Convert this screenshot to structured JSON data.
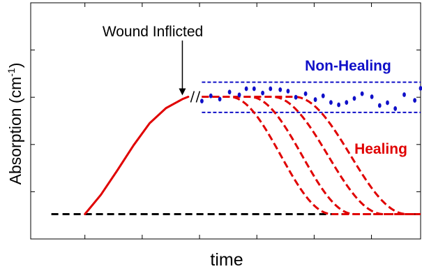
{
  "chart_data": {
    "type": "line",
    "title": "",
    "xlabel": "time",
    "ylabel": "Absorption (cm",
    "ylabel_sup": "-1",
    "ylabel_close": ")",
    "xlim": [
      0,
      1
    ],
    "ylim": [
      0,
      1
    ],
    "grid": false,
    "xticks": [
      0.139,
      0.286,
      0.433,
      0.58,
      0.727,
      0.874
    ],
    "yticks": [
      0.2,
      0.4,
      0.6,
      0.8
    ],
    "annotations": [
      {
        "text": "Wound Inflicted",
        "arrow_to": [
          0.389,
          0.602
        ]
      }
    ],
    "series": [
      {
        "name": "",
        "color": "#000000",
        "style": "dashed",
        "points": [
          [
            0.053,
            0.105
          ],
          [
            1.0,
            0.105
          ]
        ]
      },
      {
        "name": "",
        "color": "#e00000",
        "style": "solid",
        "points": [
          [
            0.139,
            0.105
          ],
          [
            0.18,
            0.187
          ],
          [
            0.222,
            0.29
          ],
          [
            0.264,
            0.397
          ],
          [
            0.305,
            0.49
          ],
          [
            0.347,
            0.554
          ],
          [
            0.389,
            0.592
          ],
          [
            0.404,
            0.602
          ]
        ]
      },
      {
        "name": "Healing",
        "color": "#e00000",
        "style": "dashed",
        "curves": [
          {
            "plateau": 0.602,
            "baseline": 0.105,
            "drop_start": 0.51,
            "drop_end": 0.773
          },
          {
            "plateau": 0.602,
            "baseline": 0.105,
            "drop_start": 0.562,
            "drop_end": 0.83
          },
          {
            "plateau": 0.602,
            "baseline": 0.105,
            "drop_start": 0.62,
            "drop_end": 0.905
          },
          {
            "plateau": 0.602,
            "baseline": 0.105,
            "drop_start": 0.676,
            "drop_end": 0.965
          }
        ],
        "x_start": 0.439,
        "x_end": 1.0
      },
      {
        "name": "Non-Healing",
        "color": "#1010c8",
        "style": "dotted",
        "bounds": [
          0.536,
          0.664
        ],
        "x_start": 0.439,
        "x_end": 1.0,
        "points": [
          [
            0.439,
            0.584
          ],
          [
            0.462,
            0.606
          ],
          [
            0.485,
            0.592
          ],
          [
            0.51,
            0.622
          ],
          [
            0.535,
            0.61
          ],
          [
            0.553,
            0.636
          ],
          [
            0.573,
            0.636
          ],
          [
            0.595,
            0.618
          ],
          [
            0.615,
            0.636
          ],
          [
            0.64,
            0.632
          ],
          [
            0.66,
            0.626
          ],
          [
            0.68,
            0.6
          ],
          [
            0.705,
            0.615
          ],
          [
            0.73,
            0.59
          ],
          [
            0.75,
            0.606
          ],
          [
            0.77,
            0.578
          ],
          [
            0.79,
            0.568
          ],
          [
            0.81,
            0.578
          ],
          [
            0.83,
            0.595
          ],
          [
            0.85,
            0.615
          ],
          [
            0.875,
            0.602
          ],
          [
            0.895,
            0.565
          ],
          [
            0.915,
            0.577
          ],
          [
            0.935,
            0.552
          ],
          [
            0.958,
            0.611
          ],
          [
            0.985,
            0.587
          ],
          [
            1.0,
            0.638
          ]
        ]
      }
    ]
  },
  "labels": {
    "annotation": "Wound Inflicted",
    "non_healing": "Non-Healing",
    "healing": "Healing"
  }
}
